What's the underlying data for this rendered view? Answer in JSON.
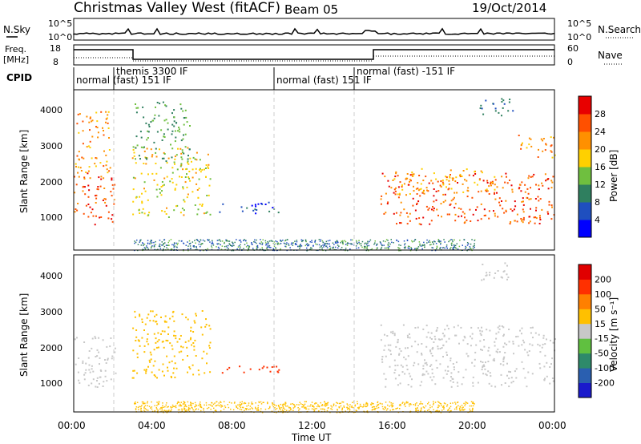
{
  "header": {
    "title": "Christmas Valley West (fitACF)",
    "beam": "Beam 05",
    "date": "19/Oct/2014"
  },
  "noise_panel": {
    "left_label": "N.Sky",
    "right_label": "N.Search",
    "y_ticks": [
      "10^5",
      "10^0"
    ]
  },
  "freq_panel": {
    "left_label_1": "Freq.",
    "left_label_2": "[MHz]",
    "right_label": "Nave",
    "left_ticks": [
      "18",
      "8"
    ],
    "right_ticks": [
      "60",
      "0"
    ]
  },
  "cpid": {
    "label": "CPID",
    "segments": [
      {
        "start": "00:00",
        "end": "02:00",
        "text": "normal (fast) 151 IF"
      },
      {
        "start": "02:00",
        "end": "10:00",
        "text": "themis 3300 IF"
      },
      {
        "start": "10:00",
        "end": "14:00",
        "text": "normal (fast) 151 IF"
      },
      {
        "start": "14:00",
        "end": "24:00",
        "text": "normal (fast) -151 IF"
      }
    ]
  },
  "power_panel": {
    "ylabel": "Slant Range [km]",
    "y_ticks": [
      "1000",
      "2000",
      "3000",
      "4000"
    ],
    "colorbar_label": "Power [dB]",
    "colorbar_ticks": [
      "4",
      "8",
      "12",
      "16",
      "20",
      "24",
      "28"
    ],
    "colorbar_colors": [
      "#0000ff",
      "#1f4fbf",
      "#2f7f5f",
      "#6fbf3f",
      "#ffd000",
      "#ff9000",
      "#ff5000",
      "#e80000"
    ]
  },
  "velocity_panel": {
    "ylabel": "Slant Range [km]",
    "y_ticks": [
      "1000",
      "2000",
      "3000",
      "4000"
    ],
    "colorbar_label": "Velocity [m s⁻¹]",
    "colorbar_ticks": [
      "200",
      "100",
      "50",
      "15",
      "-15",
      "-50",
      "-100",
      "-200"
    ],
    "colorbar_colors": [
      "#1a1acc",
      "#2a5fb0",
      "#2e8a6a",
      "#60c040",
      "#c8c8c8",
      "#ffc000",
      "#ff8000",
      "#ff3000",
      "#e00000"
    ]
  },
  "x_axis": {
    "label": "Time UT",
    "ticks": [
      "00:00",
      "04:00",
      "08:00",
      "12:00",
      "16:00",
      "20:00",
      "00:00"
    ]
  },
  "chart_data": {
    "type": "heatmap",
    "x_range_hours": [
      0,
      24
    ],
    "y_range_km": [
      200,
      4500
    ],
    "power_scatter_regions": [
      {
        "t0": 0.0,
        "t1": 2.1,
        "r0": 900,
        "r1": 2300,
        "power": 26
      },
      {
        "t0": 0.0,
        "t1": 1.8,
        "r0": 2300,
        "r1": 4000,
        "power": 22
      },
      {
        "t0": 2.9,
        "t1": 6.8,
        "r0": 1100,
        "r1": 3000,
        "power": 18
      },
      {
        "t0": 3.0,
        "t1": 5.8,
        "r0": 2600,
        "r1": 4200,
        "power": 12
      },
      {
        "t0": 7.2,
        "t1": 10.3,
        "r0": 1200,
        "r1": 1500,
        "power": 6
      },
      {
        "t0": 15.3,
        "t1": 24.0,
        "r0": 900,
        "r1": 2300,
        "power": 26
      },
      {
        "t0": 15.8,
        "t1": 21.0,
        "r0": 1700,
        "r1": 2400,
        "power": 20
      },
      {
        "t0": 20.2,
        "t1": 22.0,
        "r0": 3800,
        "r1": 4300,
        "power": 8
      },
      {
        "t0": 22.0,
        "t1": 24.0,
        "r0": 2700,
        "r1": 3300,
        "power": 22
      }
    ],
    "velocity_scatter_regions": [
      {
        "t0": 0.0,
        "t1": 2.1,
        "r0": 900,
        "r1": 2300,
        "velocity": 0
      },
      {
        "t0": 2.9,
        "t1": 6.8,
        "r0": 1100,
        "r1": 3000,
        "velocity": -20
      },
      {
        "t0": 7.2,
        "t1": 10.3,
        "r0": 1250,
        "r1": 1500,
        "velocity": -150
      },
      {
        "t0": 15.3,
        "t1": 24.0,
        "r0": 900,
        "r1": 2600,
        "velocity": 0
      },
      {
        "t0": 20.2,
        "t1": 22.0,
        "r0": 3800,
        "r1": 4300,
        "velocity": 0
      }
    ],
    "ground_scatter_range_km": [
      200,
      500
    ]
  }
}
